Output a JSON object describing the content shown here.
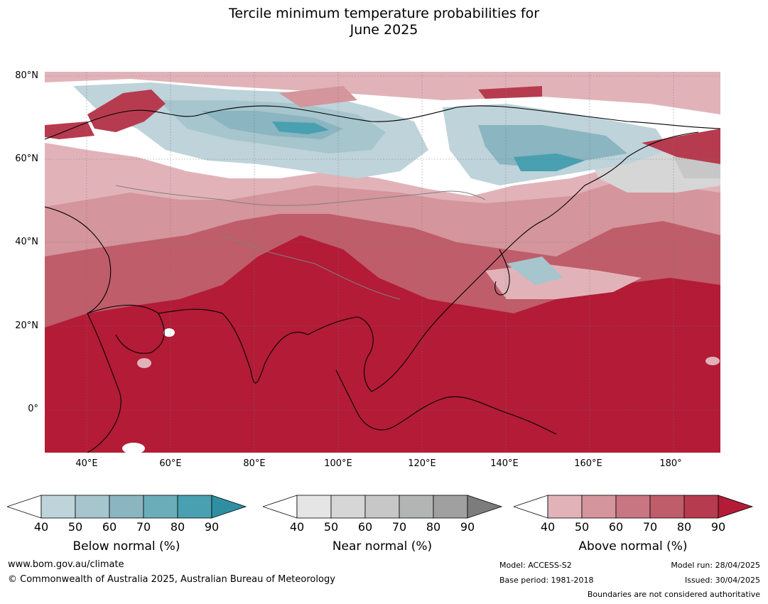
{
  "title": {
    "line1": "Tercile minimum temperature probabilities for",
    "line2": "June 2025"
  },
  "map": {
    "lat_labels": [
      "80°N",
      "60°N",
      "40°N",
      "20°N",
      "0°"
    ],
    "lon_labels": [
      "40°E",
      "60°E",
      "80°E",
      "100°E",
      "120°E",
      "140°E",
      "160°E",
      "180°"
    ],
    "extent": {
      "lon_min": 30,
      "lon_max": 191,
      "lat_min": -10,
      "lat_max": 81
    }
  },
  "legend": {
    "below": {
      "title": "Below normal (%)",
      "ticks": [
        "40",
        "50",
        "60",
        "70",
        "80",
        "90"
      ],
      "colors": [
        "#ffffff",
        "#bed3da",
        "#a6c5cc",
        "#8ab5c1",
        "#6baeba",
        "#48a0b0",
        "#2e8fa2"
      ]
    },
    "near": {
      "title": "Near normal (%)",
      "ticks": [
        "40",
        "50",
        "60",
        "70",
        "80",
        "90"
      ],
      "colors": [
        "#ffffff",
        "#e5e5e5",
        "#d6d6d6",
        "#c7c7c7",
        "#b3b4b4",
        "#a0a0a0",
        "#7c7c7c"
      ]
    },
    "above": {
      "title": "Above normal (%)",
      "ticks": [
        "40",
        "50",
        "60",
        "70",
        "80",
        "90"
      ],
      "colors": [
        "#ffffff",
        "#e1b3b9",
        "#d4959c",
        "#c87682",
        "#bf5d6a",
        "#b73b4e",
        "#b31b36"
      ]
    }
  },
  "footer": {
    "url": "www.bom.gov.au/climate",
    "copyright": "© Commonwealth of Australia 2025, Australian Bureau of Meteorology",
    "model": "Model: ACCESS-S2",
    "base_period": "Base period: 1981-2018",
    "model_run": "Model run: 28/04/2025",
    "issued": "Issued: 30/04/2025",
    "disclaimer": "Boundaries are not considered authoritative"
  }
}
